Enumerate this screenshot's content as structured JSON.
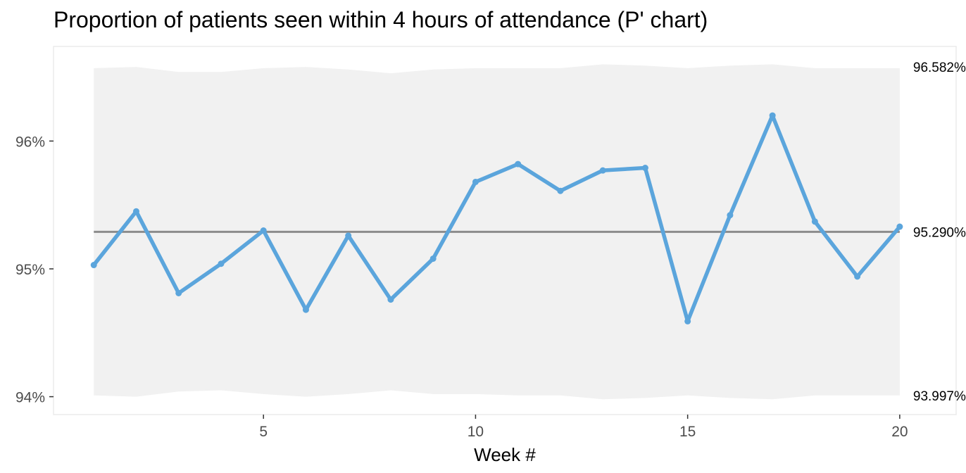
{
  "chart_data": {
    "type": "line",
    "title": "Proportion of patients seen within 4 hours of attendance (P' chart)",
    "xlabel": "Week #",
    "ylabel": "",
    "x": [
      1,
      2,
      3,
      4,
      5,
      6,
      7,
      8,
      9,
      10,
      11,
      12,
      13,
      14,
      15,
      16,
      17,
      18,
      19,
      20
    ],
    "values": [
      95.03,
      95.45,
      94.81,
      95.04,
      95.3,
      94.68,
      95.26,
      94.76,
      95.08,
      95.68,
      95.82,
      95.61,
      95.77,
      95.79,
      94.59,
      95.42,
      96.2,
      95.37,
      94.94,
      95.33
    ],
    "control_limits": {
      "center": 95.29,
      "upper": [
        96.57,
        96.58,
        96.54,
        96.54,
        96.57,
        96.58,
        96.56,
        96.53,
        96.56,
        96.57,
        96.57,
        96.57,
        96.6,
        96.59,
        96.57,
        96.59,
        96.6,
        96.57,
        96.57,
        96.57
      ],
      "lower": [
        94.01,
        94.0,
        94.04,
        94.05,
        94.02,
        94.0,
        94.02,
        94.05,
        94.02,
        94.02,
        94.01,
        94.01,
        93.98,
        93.99,
        94.01,
        93.99,
        93.98,
        94.01,
        94.01,
        94.01
      ]
    },
    "limit_labels": {
      "upper": "96.582%",
      "center": "95.290%",
      "lower": "93.997%"
    },
    "y_ticks": [
      {
        "value": 94,
        "label": "94%"
      },
      {
        "value": 95,
        "label": "95%"
      },
      {
        "value": 96,
        "label": "96%"
      }
    ],
    "x_ticks": [
      {
        "value": 5,
        "label": "5"
      },
      {
        "value": 10,
        "label": "10"
      },
      {
        "value": 15,
        "label": "15"
      },
      {
        "value": 20,
        "label": "20"
      }
    ],
    "xlim": [
      0.05,
      21.33
    ],
    "ylim": [
      93.86,
      96.74
    ],
    "grid": false,
    "colors": {
      "line": "#5ba5dc",
      "center_line": "#8c8c8c",
      "band": "#f1f1f1",
      "panel_border": "#ebebeb"
    }
  }
}
